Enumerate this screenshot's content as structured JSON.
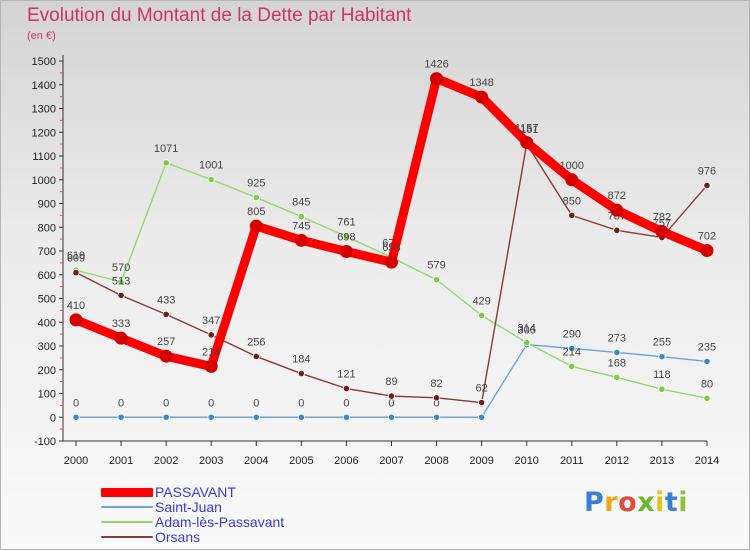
{
  "chart_data": {
    "type": "line",
    "title": "Evolution du Montant de la Dette par Habitant",
    "subtitle": "(en €)",
    "x": [
      "2000",
      "2001",
      "2002",
      "2003",
      "2004",
      "2005",
      "2006",
      "2007",
      "2008",
      "2009",
      "2010",
      "2011",
      "2012",
      "2013",
      "2014"
    ],
    "yticks": [
      "-100",
      "0",
      "100",
      "200",
      "300",
      "400",
      "500",
      "600",
      "700",
      "800",
      "900",
      "1000",
      "1100",
      "1200",
      "1300",
      "1400",
      "1500"
    ],
    "ylim": [
      -100,
      1500
    ],
    "grid": false,
    "legend_position": "bottom-left",
    "series": [
      {
        "name": "PASSAVANT",
        "color": "#ff0000",
        "point_color": "#d40000",
        "emphasis": true,
        "values": [
          410,
          333,
          257,
          214,
          805,
          745,
          698,
          653,
          1426,
          1348,
          1157,
          1000,
          872,
          782,
          702
        ]
      },
      {
        "name": "Saint-Juan",
        "color": "#6fa3d6",
        "point_color": "#3f88c8",
        "emphasis": false,
        "values": [
          0,
          0,
          0,
          0,
          0,
          0,
          0,
          0,
          0,
          0,
          306,
          290,
          273,
          255,
          235
        ]
      },
      {
        "name": "Adam-lès-Passavant",
        "color": "#92d870",
        "point_color": "#7ccb45",
        "emphasis": false,
        "values": [
          619,
          570,
          1071,
          1001,
          925,
          845,
          761,
          673,
          579,
          429,
          314,
          214,
          168,
          118,
          80
        ]
      },
      {
        "name": "Orsans",
        "color": "#8a3a3a",
        "point_color": "#6b1f1f",
        "emphasis": false,
        "values": [
          609,
          513,
          433,
          347,
          256,
          184,
          121,
          89,
          82,
          62,
          1151,
          850,
          787,
          757,
          976
        ]
      }
    ]
  },
  "brand": {
    "letters": [
      "P",
      "r",
      "o",
      "x",
      "i",
      "t",
      "i"
    ],
    "colors": [
      "#3b7fd0",
      "#f2a21b",
      "#e34c3a",
      "#6bb82f",
      "#e6c21a",
      "#3b7fd0",
      "#8fc13a"
    ]
  }
}
